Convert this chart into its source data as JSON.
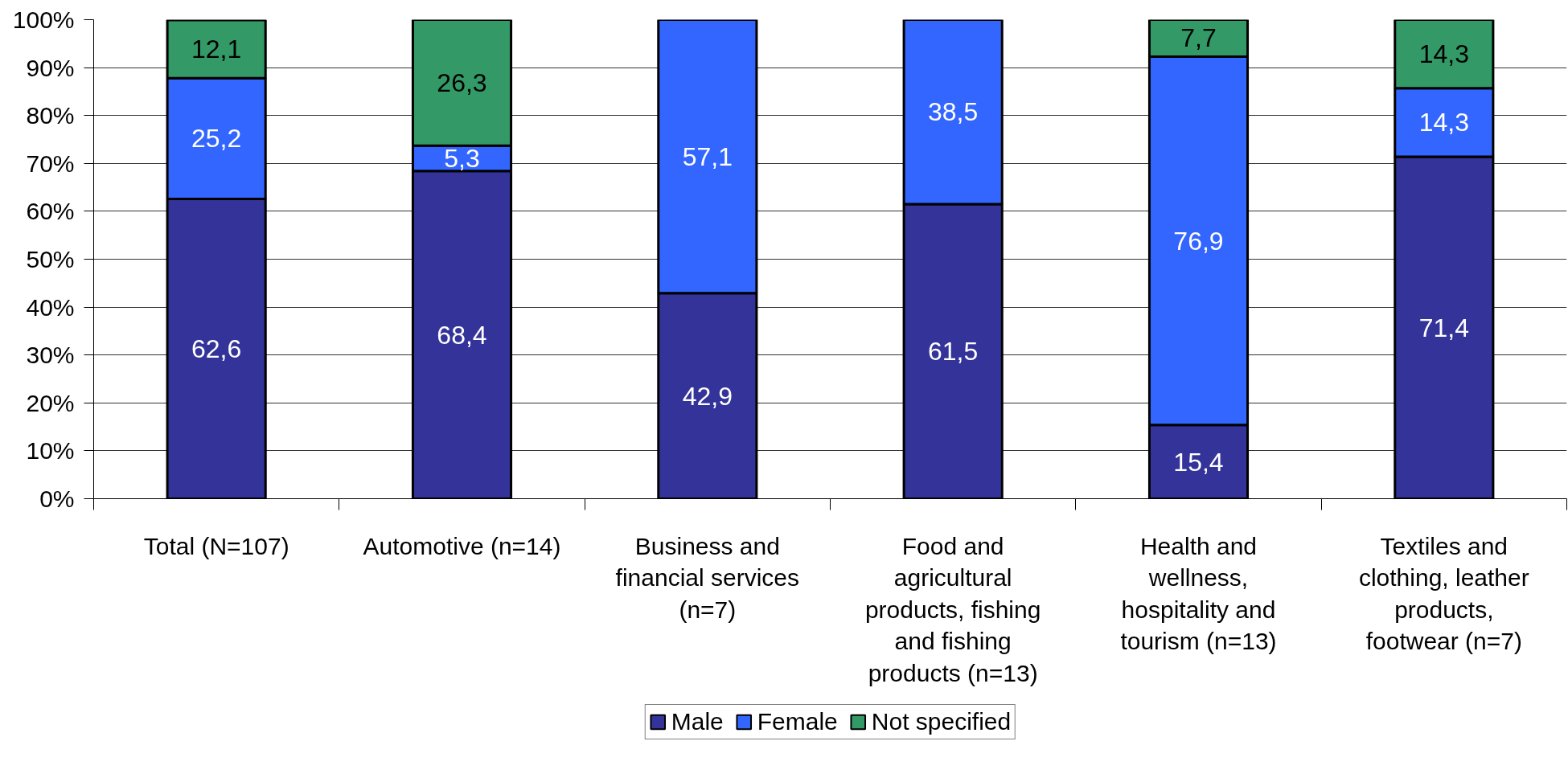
{
  "chart_data": {
    "type": "bar",
    "stacked": true,
    "categories": [
      "Total (N=107)",
      "Automotive (n=14)",
      "Business and\nfinancial services\n(n=7)",
      "Food and\nagricultural\nproducts, fishing\nand fishing\nproducts (n=13)",
      "Health and\nwellness,\nhospitality and\ntourism (n=13)",
      "Textiles and\nclothing, leather\nproducts,\nfootwear (n=7)"
    ],
    "series": [
      {
        "name": "Male",
        "color": "#333399",
        "values": [
          62.6,
          68.4,
          42.9,
          61.5,
          15.4,
          71.4
        ],
        "value_labels": [
          "62,6",
          "68,4",
          "42,9",
          "61,5",
          "15,4",
          "71,4"
        ]
      },
      {
        "name": "Female",
        "color": "#3366ff",
        "values": [
          25.2,
          5.3,
          57.1,
          38.5,
          76.9,
          14.3
        ],
        "value_labels": [
          "25,2",
          "5,3",
          "57,1",
          "38,5",
          "76,9",
          "14,3"
        ]
      },
      {
        "name": "Not specified",
        "color": "#339966",
        "values": [
          12.1,
          26.3,
          null,
          null,
          7.7,
          14.3
        ],
        "value_labels": [
          "12,1",
          "26,3",
          null,
          null,
          "7,7",
          "14,3"
        ]
      }
    ],
    "ylim": [
      0,
      100
    ],
    "yticks": [
      {
        "value": 0,
        "label": "0%"
      },
      {
        "value": 10,
        "label": "10%"
      },
      {
        "value": 20,
        "label": "20%"
      },
      {
        "value": 30,
        "label": "30%"
      },
      {
        "value": 40,
        "label": "40%"
      },
      {
        "value": 50,
        "label": "50%"
      },
      {
        "value": 60,
        "label": "60%"
      },
      {
        "value": 70,
        "label": "70%"
      },
      {
        "value": 80,
        "label": "80%"
      },
      {
        "value": 90,
        "label": "90%"
      },
      {
        "value": 100,
        "label": "100%"
      }
    ],
    "grid": "y",
    "legend": "bottom"
  }
}
